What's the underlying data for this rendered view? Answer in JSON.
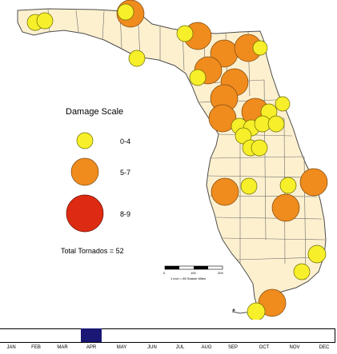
{
  "legend": {
    "title": "Damage Scale",
    "items": [
      {
        "label": "0-4",
        "color": "#f6ef2a"
      },
      {
        "label": "5-7",
        "color": "#f08b1e"
      },
      {
        "label": "8-9",
        "color": "#dd2a12"
      }
    ]
  },
  "total_label": "Total Tornados = 52",
  "scale": {
    "ticks": [
      "0",
      "100",
      "200"
    ],
    "caption": "1 inch = 85 Statute Miles"
  },
  "timeline": {
    "months": [
      "JAN",
      "FEB",
      "MAR",
      "APR",
      "MAY",
      "JUN",
      "JUL",
      "AUG",
      "SEP",
      "OCT",
      "NOV",
      "DEC"
    ],
    "selected_month": "APR"
  },
  "colors": {
    "land": "#fdf0cf",
    "border": "#4d4d4d",
    "water": "#ffffff",
    "timeline_marker": "#1b1775"
  }
}
